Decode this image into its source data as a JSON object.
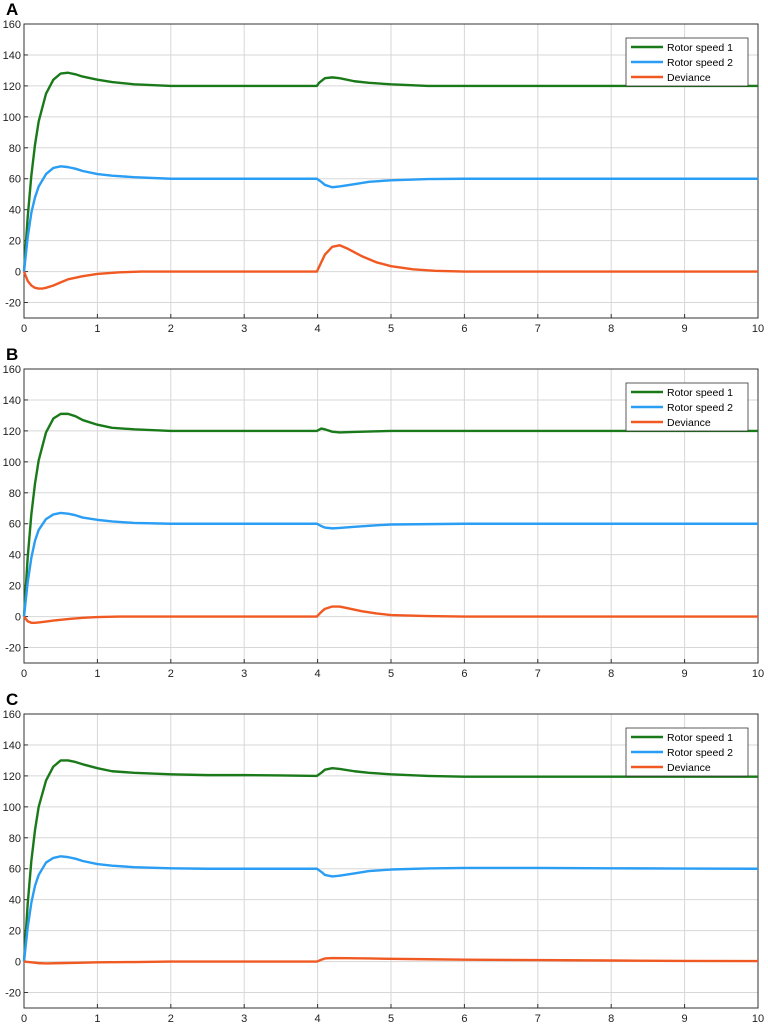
{
  "colors": {
    "rotor1": "#1a7a1a",
    "rotor2": "#2a9df4",
    "deviance": "#f05a22",
    "grid": "#d7d7d7",
    "axis": "#333333"
  },
  "chart_data": [
    {
      "panel": "A",
      "type": "line",
      "xlim": [
        0,
        10
      ],
      "ylim": [
        -30,
        160
      ],
      "xticks": [
        "0",
        "1",
        "2",
        "3",
        "4",
        "5",
        "6",
        "7",
        "8",
        "9",
        "10"
      ],
      "yticks": [
        "-20",
        "0",
        "20",
        "40",
        "60",
        "80",
        "100",
        "120",
        "140",
        "160"
      ],
      "grid": true,
      "legend_position": "top-right",
      "series": [
        {
          "name": "Rotor speed 1",
          "color": "rotor1",
          "x": [
            0,
            0.05,
            0.1,
            0.15,
            0.2,
            0.3,
            0.4,
            0.5,
            0.6,
            0.7,
            0.8,
            1.0,
            1.2,
            1.5,
            2,
            2.5,
            3,
            3.5,
            3.99,
            4.02,
            4.1,
            4.2,
            4.3,
            4.5,
            4.7,
            5,
            5.5,
            6,
            7,
            8,
            9,
            10
          ],
          "y": [
            0,
            35,
            62,
            82,
            97,
            115,
            124,
            128,
            128.5,
            127.5,
            126,
            124,
            122.5,
            121,
            120,
            120,
            120,
            120,
            120,
            122,
            125,
            125.5,
            125,
            123,
            122,
            121,
            120,
            120,
            120,
            120,
            120,
            120
          ]
        },
        {
          "name": "Rotor speed 2",
          "color": "rotor2",
          "x": [
            0,
            0.05,
            0.1,
            0.15,
            0.2,
            0.3,
            0.4,
            0.5,
            0.6,
            0.7,
            0.8,
            1.0,
            1.2,
            1.5,
            2,
            2.5,
            3,
            3.5,
            3.99,
            4.05,
            4.1,
            4.2,
            4.3,
            4.5,
            4.7,
            5,
            5.5,
            6,
            7,
            8,
            9,
            10
          ],
          "y": [
            0,
            22,
            38,
            48,
            55,
            63,
            67,
            68,
            67.5,
            66.5,
            65,
            63,
            62,
            61,
            60,
            60,
            60,
            60,
            60,
            58,
            56,
            54.5,
            55,
            56.5,
            58,
            59,
            59.8,
            60,
            60,
            60,
            60,
            60
          ]
        },
        {
          "name": "Deviance",
          "color": "deviance",
          "x": [
            0,
            0.05,
            0.1,
            0.15,
            0.2,
            0.25,
            0.3,
            0.4,
            0.5,
            0.6,
            0.8,
            1.0,
            1.3,
            1.6,
            2,
            3,
            3.99,
            4.05,
            4.1,
            4.2,
            4.3,
            4.4,
            4.6,
            4.8,
            5,
            5.3,
            5.6,
            6,
            7,
            8,
            9,
            10
          ],
          "y": [
            0,
            -6,
            -9,
            -10.5,
            -11,
            -11,
            -10.5,
            -9,
            -7,
            -5,
            -3,
            -1.5,
            -0.5,
            0,
            0,
            0,
            0,
            6,
            11,
            16,
            17,
            15,
            10,
            6,
            3.5,
            1.5,
            0.5,
            0,
            0,
            0,
            0,
            0
          ]
        }
      ]
    },
    {
      "panel": "B",
      "type": "line",
      "xlim": [
        0,
        10
      ],
      "ylim": [
        -30,
        160
      ],
      "xticks": [
        "0",
        "1",
        "2",
        "3",
        "4",
        "5",
        "6",
        "7",
        "8",
        "9",
        "10"
      ],
      "yticks": [
        "-20",
        "0",
        "20",
        "40",
        "60",
        "80",
        "100",
        "120",
        "140",
        "160"
      ],
      "grid": true,
      "legend_position": "top-right",
      "series": [
        {
          "name": "Rotor speed 1",
          "color": "rotor1",
          "x": [
            0,
            0.05,
            0.1,
            0.15,
            0.2,
            0.3,
            0.4,
            0.5,
            0.6,
            0.7,
            0.8,
            1.0,
            1.2,
            1.5,
            2,
            2.5,
            3,
            3.5,
            3.99,
            4.05,
            4.1,
            4.2,
            4.3,
            4.5,
            4.8,
            5,
            6,
            7,
            8,
            9,
            10
          ],
          "y": [
            0,
            38,
            66,
            86,
            101,
            119,
            128,
            131,
            131,
            129.5,
            127,
            124,
            122,
            121,
            120,
            120,
            120,
            120,
            120,
            121.5,
            121,
            119.5,
            119,
            119.3,
            119.7,
            120,
            120,
            120,
            120,
            120,
            120
          ]
        },
        {
          "name": "Rotor speed 2",
          "color": "rotor2",
          "x": [
            0,
            0.05,
            0.1,
            0.15,
            0.2,
            0.3,
            0.4,
            0.5,
            0.6,
            0.7,
            0.8,
            1.0,
            1.2,
            1.5,
            2,
            2.5,
            3,
            3.5,
            3.99,
            4.05,
            4.1,
            4.2,
            4.3,
            4.5,
            4.8,
            5,
            6,
            7,
            8,
            9,
            10
          ],
          "y": [
            0,
            22,
            38,
            49,
            56,
            63,
            66,
            67,
            66.5,
            65.5,
            64,
            62.5,
            61.5,
            60.5,
            60,
            60,
            60,
            60,
            60,
            58.5,
            57.5,
            57,
            57.3,
            58,
            59,
            59.5,
            60,
            60,
            60,
            60,
            60
          ]
        },
        {
          "name": "Deviance",
          "color": "deviance",
          "x": [
            0,
            0.05,
            0.1,
            0.15,
            0.2,
            0.3,
            0.4,
            0.6,
            0.8,
            1.0,
            1.3,
            2,
            3,
            3.99,
            4.05,
            4.1,
            4.2,
            4.3,
            4.4,
            4.6,
            4.8,
            5,
            5.5,
            6,
            7,
            8,
            9,
            10
          ],
          "y": [
            0,
            -3,
            -4,
            -4,
            -3.8,
            -3.2,
            -2.6,
            -1.6,
            -0.8,
            -0.3,
            0,
            0,
            0,
            0,
            3,
            5,
            6.5,
            6.5,
            5.5,
            3.5,
            2,
            1,
            0.3,
            0,
            0,
            0,
            0,
            0
          ]
        }
      ]
    },
    {
      "panel": "C",
      "type": "line",
      "xlim": [
        0,
        10
      ],
      "ylim": [
        -30,
        160
      ],
      "xticks": [
        "0",
        "1",
        "2",
        "3",
        "4",
        "5",
        "6",
        "7",
        "8",
        "9",
        "10"
      ],
      "yticks": [
        "-20",
        "0",
        "20",
        "40",
        "60",
        "80",
        "100",
        "120",
        "140",
        "160"
      ],
      "grid": true,
      "legend_position": "top-right",
      "series": [
        {
          "name": "Rotor speed 1",
          "color": "rotor1",
          "x": [
            0,
            0.05,
            0.1,
            0.15,
            0.2,
            0.3,
            0.4,
            0.5,
            0.6,
            0.7,
            0.8,
            1.0,
            1.2,
            1.5,
            2,
            2.5,
            3,
            3.5,
            3.99,
            4.05,
            4.1,
            4.2,
            4.3,
            4.5,
            4.7,
            5,
            5.5,
            6,
            7,
            8,
            9,
            10
          ],
          "y": [
            0,
            37,
            65,
            85,
            100,
            117,
            126,
            130,
            130,
            129,
            127.5,
            125,
            123,
            122,
            121,
            120.5,
            120.5,
            120.3,
            120,
            122,
            124,
            125,
            124.5,
            123,
            122,
            121,
            120,
            119.5,
            119.5,
            119.5,
            119.5,
            119.5
          ]
        },
        {
          "name": "Rotor speed 2",
          "color": "rotor2",
          "x": [
            0,
            0.05,
            0.1,
            0.15,
            0.2,
            0.3,
            0.4,
            0.5,
            0.6,
            0.7,
            0.8,
            1.0,
            1.2,
            1.5,
            2,
            2.5,
            3,
            3.5,
            3.99,
            4.05,
            4.1,
            4.2,
            4.3,
            4.5,
            4.7,
            5,
            5.5,
            6,
            7,
            8,
            9,
            10
          ],
          "y": [
            0,
            22,
            38,
            49,
            56,
            64,
            67,
            68,
            67.5,
            66.5,
            65,
            63,
            62,
            61,
            60.3,
            60,
            60,
            60,
            60,
            58,
            56,
            55,
            55.5,
            57,
            58.5,
            59.5,
            60.2,
            60.5,
            60.5,
            60.3,
            60.1,
            60
          ]
        },
        {
          "name": "Deviance",
          "color": "deviance",
          "x": [
            0,
            0.1,
            0.2,
            0.3,
            0.5,
            0.8,
            1.0,
            1.5,
            2,
            3,
            3.99,
            4.05,
            4.1,
            4.2,
            4.4,
            4.7,
            5,
            5.5,
            6,
            7,
            8,
            9,
            10
          ],
          "y": [
            0,
            -0.5,
            -1,
            -1.2,
            -1,
            -0.7,
            -0.5,
            -0.3,
            0,
            0,
            0,
            1.2,
            2,
            2.3,
            2.2,
            2,
            1.8,
            1.5,
            1.2,
            1,
            0.7,
            0.4,
            0.3
          ]
        }
      ]
    }
  ]
}
